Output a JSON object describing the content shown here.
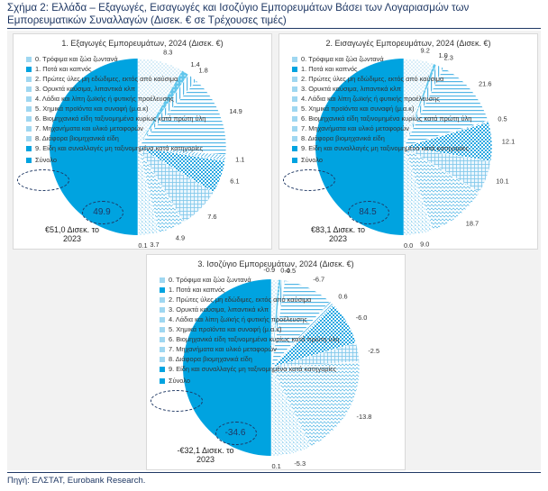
{
  "figure": {
    "title": "Σχήμα 2: Ελλάδα – Εξαγωγές, Εισαγωγές και Ισοζύγιο Εμπορευμάτων Βάσει των Λογαριασμών των Εμπορευματικών Συναλλαγών (Δισεκ. € σε Τρέχουσες τιμές)",
    "source": "Πηγή: ΕΛΣΤΑΤ, Eurobank Research."
  },
  "legend_items": [
    "0. Τρόφιμα και ζώα ζωντανά",
    "1. Ποτά και καπνός",
    "2. Πρώτες ύλες μη εδώδιμες, εκτός από καύσιμα",
    "3. Ορυκτά καύσιμα, λιπαντικά κλπ",
    "4. Λάδια και λίπη ζωϊκής ή φυτικής προέλευσης",
    "5. Χημικά προϊόντα και συναφή (μ.α.κ)",
    "6. Βιομηχανικά είδη ταξινομημένα κυρίως κατά πρώτη ύλη",
    "7. Μηχανήματα και υλικό μεταφορών",
    "8. Διάφορα βιομηχανικά είδη",
    "9. Είδη και συναλλαγές μη ταξινομημένα κατά κατηγορίες",
    "Σύνολο"
  ],
  "colors": {
    "accent": "#00a3e0",
    "dark": "#1f3864"
  },
  "chart_data": [
    {
      "type": "pie",
      "title": "1. Εξαγωγές Εμπορευμάτων, 2024 (Δισεκ. €)",
      "categories": [
        "0",
        "1",
        "2",
        "3",
        "4",
        "5",
        "6",
        "7",
        "8",
        "9",
        "Σύνολο"
      ],
      "values": [
        8.3,
        1.4,
        1.8,
        14.9,
        1.1,
        6.1,
        7.6,
        4.9,
        3.7,
        0.1,
        49.9
      ],
      "value_labels": [
        "8.3",
        "1.4",
        "1.8",
        "14.9",
        "1.1",
        "6.1",
        "7.6",
        "4.9",
        "3.7",
        "0.1",
        "49.9"
      ],
      "total_label": "49.9",
      "note": "€51,0 Δισεκ. το 2023"
    },
    {
      "type": "pie",
      "title": "2. Εισαγωγές Εμπορευμάτων, 2024 (Δισεκ. €)",
      "categories": [
        "0",
        "1",
        "2",
        "3",
        "4",
        "5",
        "6",
        "7",
        "8",
        "9",
        "Σύνολο"
      ],
      "values": [
        9.2,
        1.0,
        2.3,
        21.6,
        0.5,
        12.1,
        10.1,
        18.7,
        9.0,
        0.0,
        84.5
      ],
      "value_labels": [
        "9.2",
        "1.0",
        "2.3",
        "21.6",
        "0.5",
        "12.1",
        "10.1",
        "18.7",
        "9.0",
        "0.0",
        "84.5"
      ],
      "total_label": "84.5",
      "note": "€83,1 Δισεκ. το 2023"
    },
    {
      "type": "pie",
      "title": "3. Ισοζύγιο Εμπορευμάτων, 2024 (Δισεκ. €)",
      "categories": [
        "0",
        "1",
        "2",
        "3",
        "4",
        "5",
        "6",
        "7",
        "8",
        "9",
        "Σύνολο"
      ],
      "values": [
        -0.9,
        0.4,
        -0.5,
        -6.7,
        0.6,
        -6.0,
        -2.5,
        -13.8,
        -5.3,
        0.1,
        -34.6
      ],
      "value_labels": [
        "-0.9",
        "0.4",
        "-0.5",
        "-6.7",
        "0.6",
        "-6.0",
        "-2.5",
        "-13.8",
        "-5.3",
        "0.1",
        "-34.6"
      ],
      "total_label": "-34.6",
      "note": "-€32,1 Δισεκ. το 2023"
    }
  ]
}
